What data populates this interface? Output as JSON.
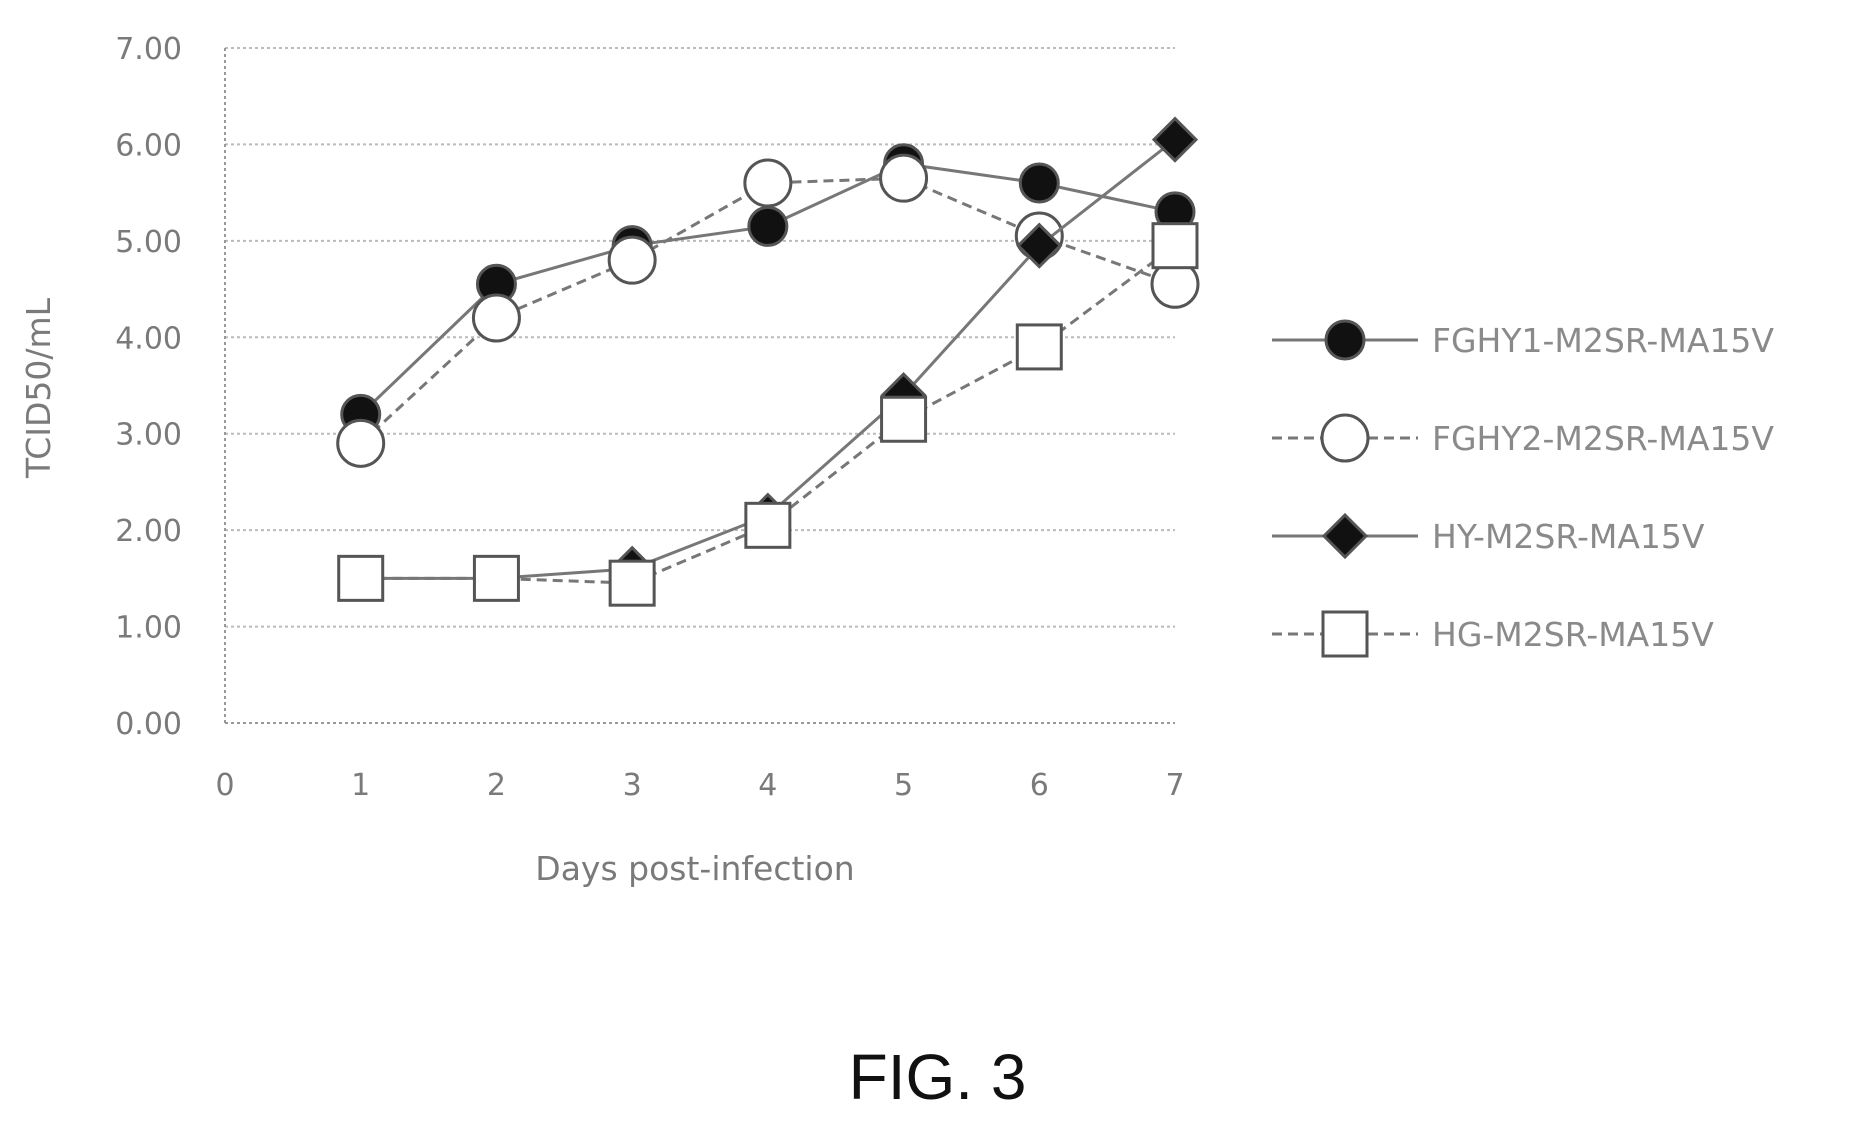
{
  "caption": "FIG. 3",
  "chart_data": {
    "type": "line",
    "title": "",
    "xlabel": "Days post-infection",
    "ylabel": "TCID50/mL",
    "x": [
      1,
      2,
      3,
      4,
      5,
      6,
      7
    ],
    "xlim": [
      0,
      7
    ],
    "ylim": [
      0,
      7
    ],
    "x_ticks": [
      "0",
      "1",
      "2",
      "3",
      "4",
      "5",
      "6",
      "7"
    ],
    "y_ticks": [
      "0.00",
      "1.00",
      "2.00",
      "3.00",
      "4.00",
      "5.00",
      "6.00",
      "7.00"
    ],
    "grid": "horizontal dotted",
    "legend_position": "right",
    "series": [
      {
        "name": "FGHY1-M2SR-MA15V",
        "values": [
          3.2,
          4.55,
          4.95,
          5.15,
          5.8,
          5.6,
          5.3
        ],
        "marker": "filled-circle",
        "line": "solid"
      },
      {
        "name": "FGHY2-M2SR-MA15V",
        "values": [
          2.9,
          4.2,
          4.8,
          5.6,
          5.65,
          5.05,
          4.55
        ],
        "marker": "open-circle",
        "line": "dashed"
      },
      {
        "name": "HY-M2SR-MA15V",
        "values": [
          1.5,
          1.5,
          1.6,
          2.15,
          3.4,
          4.95,
          6.05
        ],
        "marker": "filled-diamond",
        "line": "solid"
      },
      {
        "name": "HG-M2SR-MA15V",
        "values": [
          1.5,
          1.5,
          1.45,
          2.05,
          3.15,
          3.9,
          4.95
        ],
        "marker": "open-square",
        "line": "dashed"
      }
    ],
    "colors": {
      "line": "#777777",
      "marker_fill": "#111111",
      "grid": "#bbbbbb",
      "text": "#7a7a7a"
    }
  }
}
